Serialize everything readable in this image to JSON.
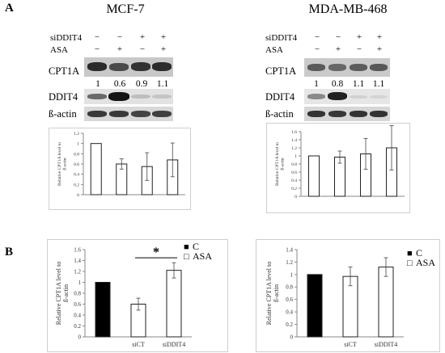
{
  "panel_a": {
    "letter": "A",
    "left": {
      "title": "MCF-7",
      "conditions": [
        {
          "label": "siDDIT4",
          "values": [
            "−",
            "−",
            "+",
            "+"
          ]
        },
        {
          "label": "ASA",
          "values": [
            "−",
            "+",
            "−",
            "+"
          ]
        }
      ],
      "blots": [
        "CPT1A",
        "DDIT4",
        "ß-actin"
      ],
      "quantification": [
        "1",
        "0.6",
        "0.9",
        "1.1"
      ]
    },
    "right": {
      "title": "MDA-MB-468",
      "conditions": [
        {
          "label": "siDDIT4",
          "values": [
            "−",
            "−",
            "+",
            "+"
          ]
        },
        {
          "label": "ASA",
          "values": [
            "−",
            "+",
            "−",
            "+"
          ]
        }
      ],
      "blots": [
        "CPT1A",
        "DDIT4",
        "ß-actin"
      ],
      "quantification": [
        "1",
        "0.8",
        "1.1",
        "1.1"
      ]
    }
  },
  "panel_b": {
    "letter": "B"
  },
  "chart_data": [
    {
      "type": "bar",
      "panel": "A-left",
      "ylabel": "Relative CPT1A level to ß-actin",
      "ylim": [
        0,
        1.2
      ],
      "yticks": [
        "0",
        "0.2",
        "0.4",
        "0.6",
        "0.8",
        "1",
        "1.2"
      ],
      "values": [
        1.0,
        0.6,
        0.55,
        0.68
      ],
      "errors": [
        0,
        0.1,
        0.27,
        0.33
      ],
      "fill": "#ffffff"
    },
    {
      "type": "bar",
      "panel": "A-right",
      "ylabel": "Relative CPT1A level to ß-actin",
      "ylim": [
        0,
        1.6
      ],
      "yticks": [
        "0",
        "0.2",
        "0.4",
        "0.6",
        "0.8",
        "1",
        "1.2",
        "1.4",
        "1.6"
      ],
      "values": [
        1.0,
        0.97,
        1.05,
        1.2
      ],
      "errors": [
        0,
        0.15,
        0.38,
        0.55
      ],
      "fill": "#ffffff"
    },
    {
      "type": "bar",
      "panel": "B-left",
      "ylabel": "Relative CPT1A level to ß-actin",
      "ylim": [
        0,
        1.6
      ],
      "yticks": [
        "0",
        "0.2",
        "0.4",
        "0.6",
        "0.8",
        "1",
        "1.2",
        "1.4",
        "1.6"
      ],
      "categories": [
        "",
        "siCT",
        "siDDIT4"
      ],
      "bars": [
        {
          "value": 1.0,
          "error": 0,
          "color": "#000000"
        },
        {
          "value": 0.6,
          "error": 0.11,
          "color": "#ffffff"
        },
        {
          "value": 1.22,
          "error": 0.14,
          "color": "#ffffff"
        }
      ],
      "legend": [
        {
          "symbol": "■",
          "label": "C"
        },
        {
          "symbol": "□",
          "label": "ASA"
        }
      ],
      "significance": "*"
    },
    {
      "type": "bar",
      "panel": "B-right",
      "ylabel": "Relative CPT1A level to ß-actin",
      "ylim": [
        0,
        1.4
      ],
      "yticks": [
        "0",
        "0.2",
        "0.4",
        "0.6",
        "0.8",
        "1",
        "1.2",
        "1.4"
      ],
      "categories": [
        "",
        "siCT",
        "siDDIT4"
      ],
      "bars": [
        {
          "value": 1.0,
          "error": 0,
          "color": "#000000"
        },
        {
          "value": 0.97,
          "error": 0.15,
          "color": "#ffffff"
        },
        {
          "value": 1.12,
          "error": 0.15,
          "color": "#ffffff"
        }
      ],
      "legend": [
        {
          "symbol": "■",
          "label": "C"
        },
        {
          "symbol": "□",
          "label": "ASA"
        }
      ]
    }
  ]
}
